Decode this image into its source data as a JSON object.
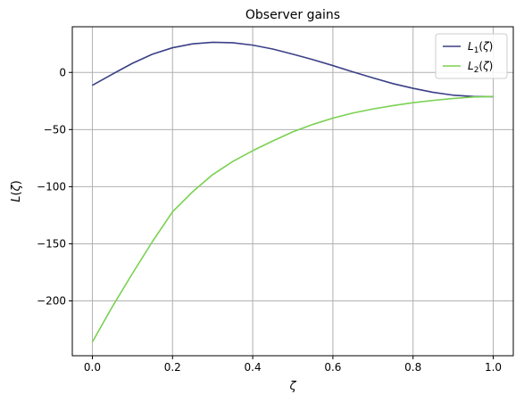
{
  "chart_data": {
    "type": "line",
    "title": "Observer gains",
    "xlabel": "ζ",
    "ylabel": "L(ζ)",
    "xlim": [
      -0.05,
      1.05
    ],
    "ylim": [
      -248,
      40
    ],
    "xticks": [
      0.0,
      0.2,
      0.4,
      0.6,
      0.8,
      1.0
    ],
    "xtick_labels": [
      "0.0",
      "0.2",
      "0.4",
      "0.6",
      "0.8",
      "1.0"
    ],
    "yticks": [
      0,
      -50,
      -100,
      -150,
      -200
    ],
    "ytick_labels": [
      "0",
      "−50",
      "−100",
      "−150",
      "−200"
    ],
    "grid": true,
    "legend_position": "top-right",
    "series": [
      {
        "name": "L1(ζ)",
        "label_main": "L",
        "label_sub": "1",
        "label_rest": "(ζ)",
        "color": "#3b3f86",
        "x": [
          0.0,
          0.05,
          0.1,
          0.15,
          0.2,
          0.25,
          0.3,
          0.35,
          0.4,
          0.45,
          0.5,
          0.55,
          0.6,
          0.65,
          0.7,
          0.75,
          0.8,
          0.85,
          0.9,
          0.95,
          1.0
        ],
        "y": [
          -11.3,
          -1.5,
          8.0,
          16.0,
          21.6,
          25.0,
          26.4,
          26.0,
          23.9,
          20.5,
          16.0,
          11.2,
          6.0,
          0.5,
          -4.8,
          -9.8,
          -13.9,
          -17.4,
          -19.9,
          -21.0,
          -21.2
        ]
      },
      {
        "name": "L2(ζ)",
        "label_main": "L",
        "label_sub": "2",
        "label_rest": "(ζ)",
        "color": "#7ad151",
        "x": [
          0.0,
          0.05,
          0.1,
          0.15,
          0.2,
          0.25,
          0.3,
          0.35,
          0.4,
          0.45,
          0.5,
          0.55,
          0.6,
          0.65,
          0.7,
          0.75,
          0.8,
          0.85,
          0.9,
          0.95,
          1.0
        ],
        "y": [
          -236.0,
          -205.0,
          -176.0,
          -148.0,
          -122.0,
          -104.5,
          -89.5,
          -78.0,
          -68.5,
          -60.0,
          -52.0,
          -45.5,
          -40.0,
          -35.5,
          -32.0,
          -29.0,
          -26.5,
          -24.5,
          -22.8,
          -21.5,
          -21.0
        ]
      }
    ]
  }
}
